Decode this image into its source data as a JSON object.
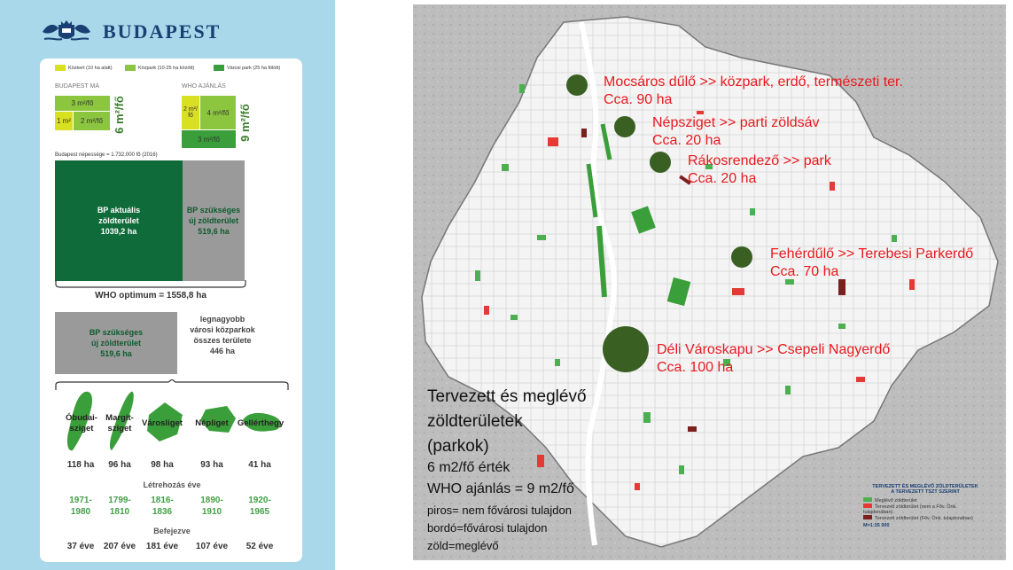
{
  "brand": {
    "name": "BUDAPEST"
  },
  "legend": [
    {
      "label": "Közkert (10 ha alatt)",
      "color": "#d9e021"
    },
    {
      "label": "Közpark (10-25 ha között)",
      "color": "#8cc63f"
    },
    {
      "label": "Városi park (25 ha fölött)",
      "color": "#3a9e3a"
    }
  ],
  "budapest_ma": {
    "title": "BUDAPEST MA",
    "top": "3 m²/fő",
    "bl": "1 m²",
    "br": "2 m²/fő",
    "total": "6 m²/fő"
  },
  "who": {
    "title": "WHO AJÁNLÁS",
    "tl": "2 m²/ fő",
    "tr": "4 m²/fő",
    "bottom": "3 m²/fő",
    "total": "9 m²/fő"
  },
  "population": "Budapest népessége = 1.732.000 fő (2016)",
  "bp_current": {
    "line1": "BP aktuális",
    "line2": "zöldterület",
    "line3": "1039,2 ha"
  },
  "bp_needed": {
    "line1": "BP szükséges",
    "line2": "új zöldterület",
    "line3": "519,6 ha"
  },
  "who_optimum": "WHO optimum = 1558,8 ha",
  "bp_needed2": {
    "line1": "BP szükséges",
    "line2": "új zöldterület",
    "line3": "519,6 ha"
  },
  "largest": {
    "line1": "legnagyobb",
    "line2": "városi közparkok",
    "line3": "összes területe",
    "line4": "446 ha"
  },
  "parks": [
    {
      "name1": "Óbudai-",
      "name2": "sziget",
      "area": "118 ha",
      "created1": "1971-",
      "created2": "1980",
      "age": "37 éve"
    },
    {
      "name1": "Margit-",
      "name2": "sziget",
      "area": "96 ha",
      "created1": "1799-",
      "created2": "1810",
      "age": "207 éve"
    },
    {
      "name1": "Városliget",
      "name2": "",
      "area": "98 ha",
      "created1": "1816-",
      "created2": "1836",
      "age": "181 éve"
    },
    {
      "name1": "Népliget",
      "name2": "",
      "area": "93 ha",
      "created1": "1890-",
      "created2": "1910",
      "age": "107 éve"
    },
    {
      "name1": "Gellérthegy",
      "name2": "",
      "area": "41 ha",
      "created1": "1920-",
      "created2": "1965",
      "age": "52 éve"
    }
  ],
  "created_label": "Létrehozás éve",
  "finished_label": "Befejezve",
  "map": {
    "annotations": [
      {
        "l1": "Mocsáros dűlő >> közpark, erdő, természeti ter.",
        "l2": "Cca. 90 ha"
      },
      {
        "l1": "Népsziget >> parti zöldsáv",
        "l2": "Cca. 20 ha"
      },
      {
        "l1": "Rákosrendező >> park",
        "l2": "Cca. 20 ha"
      },
      {
        "l1": "Fehérdűlő >> Terebesi Parkerdő",
        "l2": "Cca. 70 ha"
      },
      {
        "l1": "Déli Városkapu >> Csepeli Nagyerdő",
        "l2": "Cca. 100 ha"
      }
    ],
    "title1": "Tervezett és meglévő",
    "title2": "zöldterületek",
    "title3": "(parkok)",
    "value": "6 m2/fő érték",
    "who": "WHO ajánlás = 9 m2/fő",
    "red": "piros= nem fővárosi tulajdon",
    "burgundy": "bordó=fővárosi tulajdon",
    "green": "zöld=meglévő",
    "legend_title1": "TERVEZETT ÉS MEGLÉVŐ ZÖLDTERÜLETEK",
    "legend_title2": "A TERVEZETT TSZT SZERINT",
    "legend_items": [
      {
        "label": "Meglévő zöldterület",
        "color": "#4caf50"
      },
      {
        "label": "Tervezett zöldterület (nem a Főv. Önk. tulajdonában)",
        "color": "#e53935"
      },
      {
        "label": "Tervezett zöldterület (Főv. Önk. tulajdonában)",
        "color": "#7b1f1f"
      }
    ],
    "scale": "M=1:35 000"
  }
}
